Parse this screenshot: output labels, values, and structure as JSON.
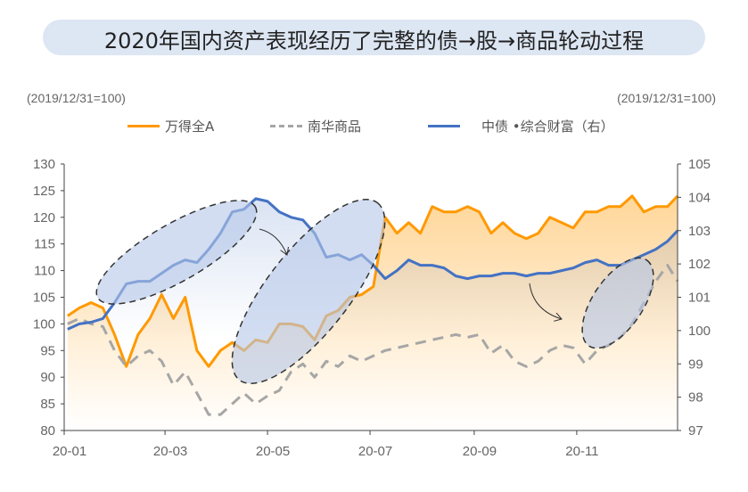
{
  "title": "2020年国内资产表现经历了完整的债→股→商品轮动过程",
  "chart_data": {
    "type": "line",
    "left_unit": "(2019/12/31=100)",
    "right_unit": "(2019/12/31=100)",
    "ylim_left": [
      80,
      130
    ],
    "ylim_right": [
      97,
      105
    ],
    "yticks_left": [
      80,
      85,
      90,
      95,
      100,
      105,
      110,
      115,
      120,
      125,
      130
    ],
    "yticks_right": [
      97,
      98,
      99,
      100,
      101,
      102,
      103,
      104,
      105
    ],
    "xticks": [
      "20-01",
      "20-03",
      "20-05",
      "20-07",
      "20-09",
      "20-11"
    ],
    "xtick_dates": [
      "2020-01-01",
      "2020-03-01",
      "2020-05-01",
      "2020-07-01",
      "2020-09-01",
      "2020-11-01"
    ],
    "xlim": [
      "2020-01-01",
      "2020-12-31"
    ],
    "legend_placement": "top",
    "x": [
      "2020-01-03",
      "2020-01-10",
      "2020-01-17",
      "2020-01-24",
      "2020-01-31",
      "2020-02-07",
      "2020-02-14",
      "2020-02-21",
      "2020-02-28",
      "2020-03-06",
      "2020-03-13",
      "2020-03-20",
      "2020-03-27",
      "2020-04-03",
      "2020-04-10",
      "2020-04-17",
      "2020-04-24",
      "2020-05-01",
      "2020-05-08",
      "2020-05-15",
      "2020-05-22",
      "2020-05-29",
      "2020-06-05",
      "2020-06-12",
      "2020-06-19",
      "2020-06-26",
      "2020-07-03",
      "2020-07-10",
      "2020-07-17",
      "2020-07-24",
      "2020-07-31",
      "2020-08-07",
      "2020-08-14",
      "2020-08-21",
      "2020-08-28",
      "2020-09-04",
      "2020-09-11",
      "2020-09-18",
      "2020-09-25",
      "2020-10-02",
      "2020-10-09",
      "2020-10-16",
      "2020-10-23",
      "2020-10-30",
      "2020-11-06",
      "2020-11-13",
      "2020-11-20",
      "2020-11-27",
      "2020-12-04",
      "2020-12-11",
      "2020-12-18",
      "2020-12-25",
      "2020-12-31"
    ],
    "series": [
      {
        "name": "万得全A",
        "axis": "left",
        "color": "#ff9900",
        "style": "solid",
        "values": [
          101.5,
          103,
          104,
          103,
          98,
          92,
          98,
          101,
          105.5,
          101,
          105,
          95,
          92,
          95,
          96.5,
          95,
          97,
          96.5,
          100,
          100,
          99.5,
          97,
          101.5,
          102.5,
          105,
          105.5,
          107,
          120,
          117,
          119,
          117,
          122,
          121,
          121,
          122,
          121,
          117,
          119,
          117,
          116,
          117,
          120,
          119,
          118,
          121,
          121,
          122,
          122,
          124,
          121,
          122,
          122,
          124
        ]
      },
      {
        "name": "南华商品",
        "axis": "left",
        "color": "#a6a6a6",
        "style": "dashed",
        "values": [
          100,
          101,
          100,
          99.5,
          95,
          92,
          94,
          95,
          93,
          88.5,
          91,
          87,
          83,
          83,
          85,
          87,
          85,
          86.5,
          87.5,
          91,
          92.5,
          90,
          93,
          92,
          94,
          93,
          94,
          95,
          95.5,
          96,
          96.5,
          97,
          97.5,
          98,
          97.5,
          98,
          94.5,
          96,
          93,
          92,
          93,
          95,
          96,
          95.5,
          92.5,
          95,
          96,
          97.5,
          100,
          104,
          108,
          111,
          108
        ]
      },
      {
        "name": "中债•综合财富（右）",
        "axis": "right",
        "color": "#4472c4",
        "style": "solid",
        "values": [
          100.04,
          100.2,
          100.25,
          100.36,
          100.84,
          101.4,
          101.48,
          101.48,
          101.72,
          101.96,
          102.12,
          102.04,
          102.44,
          102.92,
          103.56,
          103.64,
          103.96,
          103.88,
          103.56,
          103.4,
          103.32,
          102.92,
          102.2,
          102.28,
          102.12,
          102.28,
          101.96,
          101.56,
          101.8,
          102.12,
          101.96,
          101.96,
          101.88,
          101.64,
          101.56,
          101.64,
          101.64,
          101.72,
          101.72,
          101.64,
          101.72,
          101.72,
          101.8,
          101.88,
          102.04,
          102.12,
          101.96,
          101.96,
          102.12,
          102.28,
          102.44,
          102.68,
          103.0
        ]
      }
    ],
    "legend": [
      "万得全A",
      "南华商品",
      "中债 •综合财富（右）"
    ],
    "annotations": [
      "dashed-ellipse-bond-rally",
      "dashed-ellipse-equity-rally",
      "dashed-ellipse-commodity-rally",
      "arrow-bond-to-equity",
      "arrow-equity-to-commodity"
    ],
    "grid": false
  }
}
